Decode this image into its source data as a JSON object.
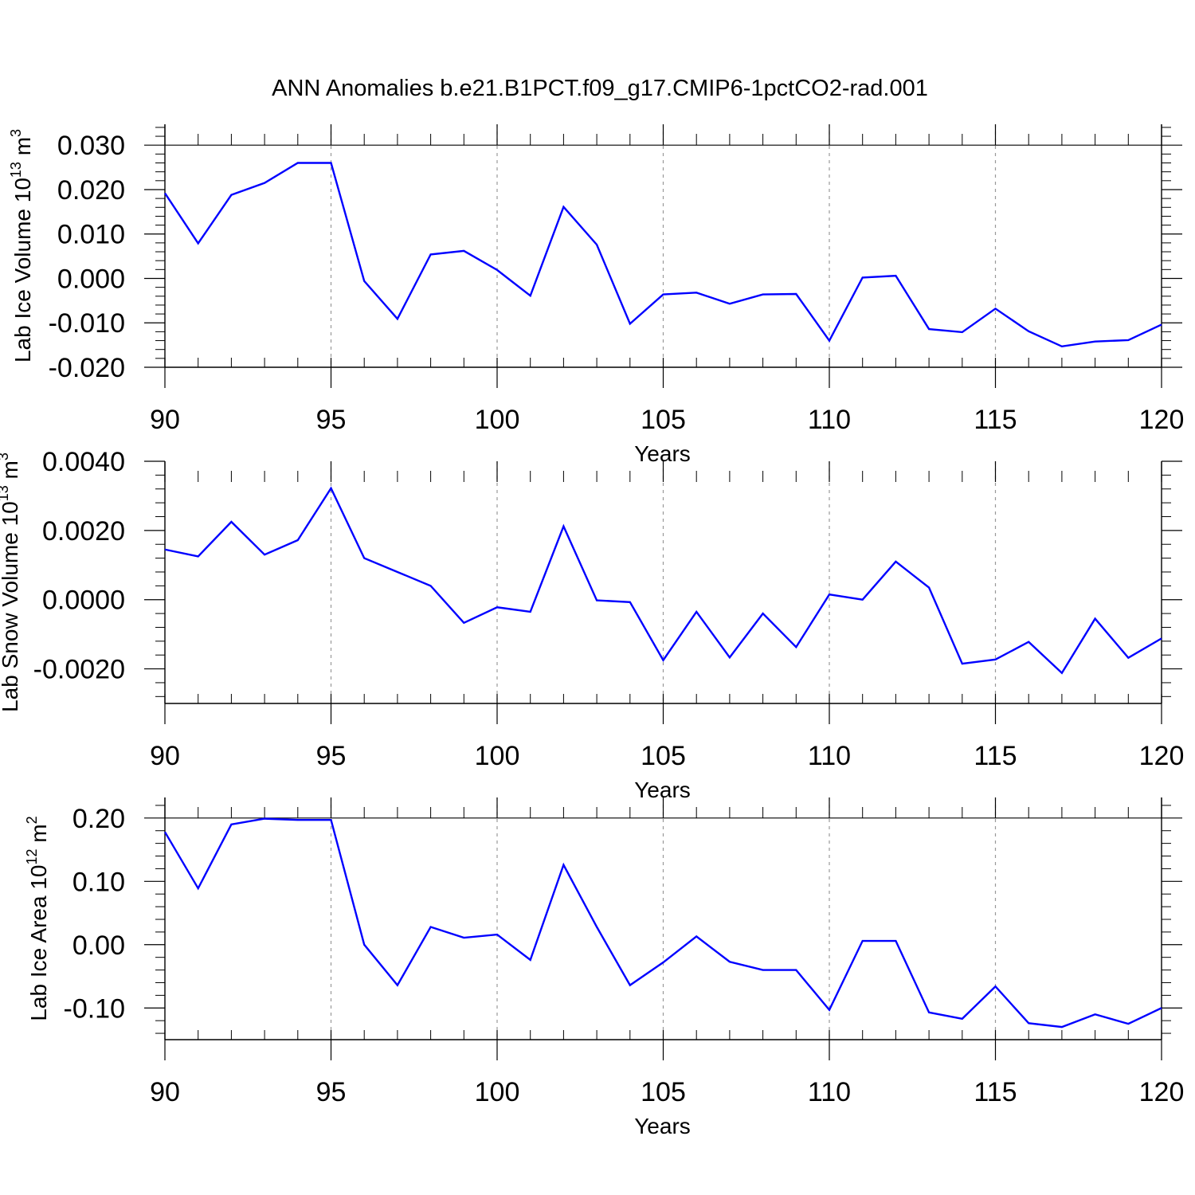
{
  "figure": {
    "title": "ANN Anomalies b.e21.B1PCT.f09_g17.CMIP6-1pctCO2-rad.001"
  },
  "colors": {
    "line": "#0000ff",
    "axis": "#000000",
    "grid": "#999999",
    "background": "#ffffff"
  },
  "chart_data": [
    {
      "type": "line",
      "title": "ANN Anomalies b.e21.B1PCT.f09_g17.CMIP6-1pctCO2-rad.001",
      "xlabel": "Years",
      "ylabel": {
        "prefix": "Lab Ice Volume 10",
        "sup": "13",
        "unit": " m",
        "unit_sup": "3"
      },
      "xlim": [
        90,
        120
      ],
      "ylim": [
        -0.02,
        0.0347
      ],
      "xticks": [
        90,
        95,
        100,
        105,
        110,
        115,
        120
      ],
      "xtick_labels": [
        "90",
        "95",
        "100",
        "105",
        "110",
        "115",
        "120"
      ],
      "yticks": [
        -0.02,
        -0.01,
        0.0,
        0.01,
        0.02,
        0.03
      ],
      "ytick_labels": [
        "-0.020",
        "-0.010",
        "0.000",
        "0.010",
        "0.020",
        "0.030"
      ],
      "ygrid_lines": [
        0.03
      ],
      "series": [
        {
          "name": "Lab Ice Volume",
          "x": [
            90,
            91,
            92,
            93,
            94,
            95,
            96,
            97,
            98,
            99,
            100,
            101,
            102,
            103,
            104,
            105,
            106,
            107,
            108,
            109,
            110,
            111,
            112,
            113,
            114,
            115,
            116,
            117,
            118,
            119,
            120
          ],
          "values": [
            0.0192,
            0.0079,
            0.0188,
            0.0215,
            0.026,
            0.026,
            -0.0006,
            -0.0091,
            0.0054,
            0.0062,
            0.0019,
            -0.0039,
            0.0161,
            0.0076,
            -0.0102,
            -0.0036,
            -0.0032,
            -0.0057,
            -0.0036,
            -0.0035,
            -0.014,
            0.0002,
            0.0006,
            -0.0114,
            -0.0121,
            -0.0068,
            -0.0119,
            -0.0153,
            -0.0142,
            -0.0139,
            -0.0104
          ]
        }
      ]
    },
    {
      "type": "line",
      "title": "",
      "xlabel": "Years",
      "ylabel": {
        "prefix": "Lab Snow Volume 10",
        "sup": "13",
        "unit": " m",
        "unit_sup": "3"
      },
      "xlim": [
        90,
        120
      ],
      "ylim": [
        -0.003,
        0.004
      ],
      "xticks": [
        90,
        95,
        100,
        105,
        110,
        115,
        120
      ],
      "xtick_labels": [
        "90",
        "95",
        "100",
        "105",
        "110",
        "115",
        "120"
      ],
      "yticks": [
        -0.002,
        0.0,
        0.002,
        0.004
      ],
      "ytick_labels": [
        "-0.0020",
        "0.0000",
        "0.0020",
        "0.0040"
      ],
      "ygrid_lines": [],
      "series": [
        {
          "name": "Lab Snow Volume",
          "x": [
            90,
            91,
            92,
            93,
            94,
            95,
            96,
            97,
            98,
            99,
            100,
            101,
            102,
            103,
            104,
            105,
            106,
            107,
            108,
            109,
            110,
            111,
            112,
            113,
            114,
            115,
            116,
            117,
            118,
            119,
            120
          ],
          "values": [
            0.00145,
            0.00125,
            0.00225,
            0.0013,
            0.00172,
            0.00322,
            0.0012,
            0.0008,
            0.0004,
            -0.00067,
            -0.00022,
            -0.00035,
            0.00212,
            -2e-05,
            -7e-05,
            -0.00175,
            -0.00035,
            -0.00167,
            -0.0004,
            -0.00137,
            0.00015,
            0.0,
            0.0011,
            0.00035,
            -0.00185,
            -0.00173,
            -0.00122,
            -0.00212,
            -0.00055,
            -0.00168,
            -0.00112
          ]
        }
      ]
    },
    {
      "type": "line",
      "title": "",
      "xlabel": "Years",
      "ylabel": {
        "prefix": "Lab Ice Area 10",
        "sup": "12",
        "unit": " m",
        "unit_sup": "2"
      },
      "xlim": [
        90,
        120
      ],
      "ylim": [
        -0.15,
        0.2325
      ],
      "xticks": [
        90,
        95,
        100,
        105,
        110,
        115,
        120
      ],
      "xtick_labels": [
        "90",
        "95",
        "100",
        "105",
        "110",
        "115",
        "120"
      ],
      "yticks": [
        -0.1,
        0.0,
        0.1,
        0.2
      ],
      "ytick_labels": [
        "-0.10",
        "0.00",
        "0.10",
        "0.20"
      ],
      "ygrid_lines": [
        0.2
      ],
      "series": [
        {
          "name": "Lab Ice Area",
          "x": [
            90,
            91,
            92,
            93,
            94,
            95,
            96,
            97,
            98,
            99,
            100,
            101,
            102,
            103,
            104,
            105,
            106,
            107,
            108,
            109,
            110,
            111,
            112,
            113,
            114,
            115,
            116,
            117,
            118,
            119,
            120
          ],
          "values": [
            0.178,
            0.089,
            0.19,
            0.199,
            0.197,
            0.197,
            0.0,
            -0.064,
            0.028,
            0.011,
            0.016,
            -0.024,
            0.126,
            0.028,
            -0.064,
            -0.028,
            0.013,
            -0.027,
            -0.04,
            -0.04,
            -0.103,
            0.006,
            0.006,
            -0.107,
            -0.117,
            -0.066,
            -0.124,
            -0.13,
            -0.11,
            -0.125,
            -0.1
          ]
        }
      ]
    }
  ]
}
